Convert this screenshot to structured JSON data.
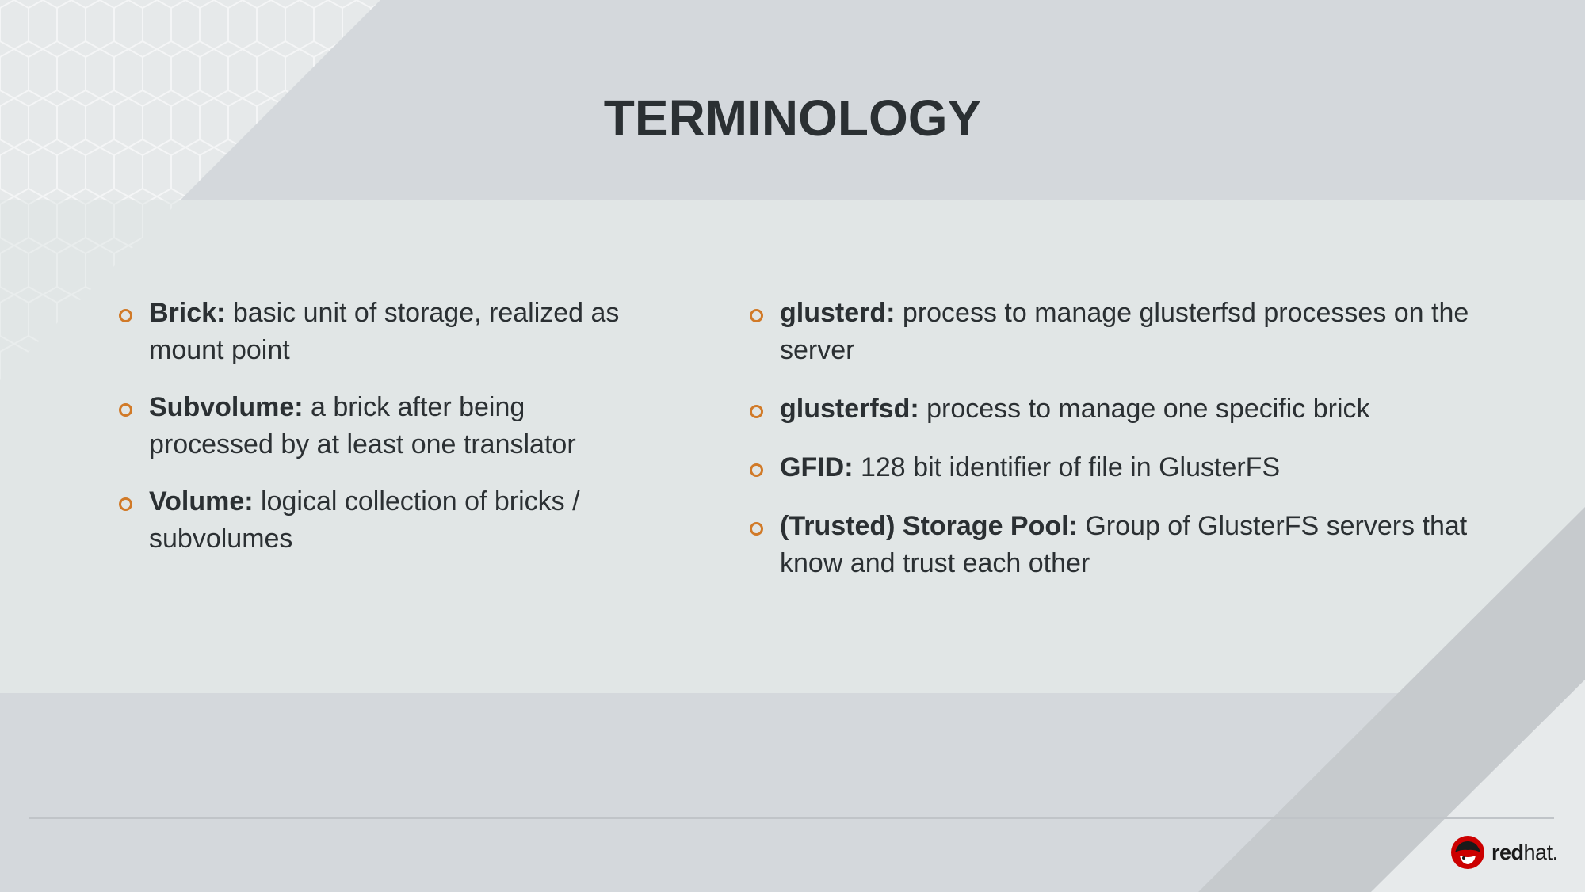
{
  "slide": {
    "title": "TERMINOLOGY",
    "left_items": [
      {
        "term": "Brick:",
        "text": "basic unit of storage, realized as mount point"
      },
      {
        "term": "Subvolume:",
        "text": "a brick after being processed by at least one translator"
      },
      {
        "term": "Volume:",
        "text": "logical collection of bricks / subvolumes"
      }
    ],
    "right_items": [
      {
        "term": "glusterd:",
        "text": "process to manage glusterfsd processes on the server"
      },
      {
        "term": "glusterfsd:",
        "text": "process to manage one specific brick"
      },
      {
        "term": "GFID:",
        "text": "128 bit identifier of file in GlusterFS"
      },
      {
        "term": "(Trusted) Storage Pool:",
        "text": "Group of GlusterFS servers that know and trust each other"
      }
    ]
  },
  "logo": {
    "brand_bold": "red",
    "brand_light": "hat."
  },
  "colors": {
    "bullet": "#d17a28",
    "text": "#2b3033",
    "logo_red": "#cc0000"
  }
}
